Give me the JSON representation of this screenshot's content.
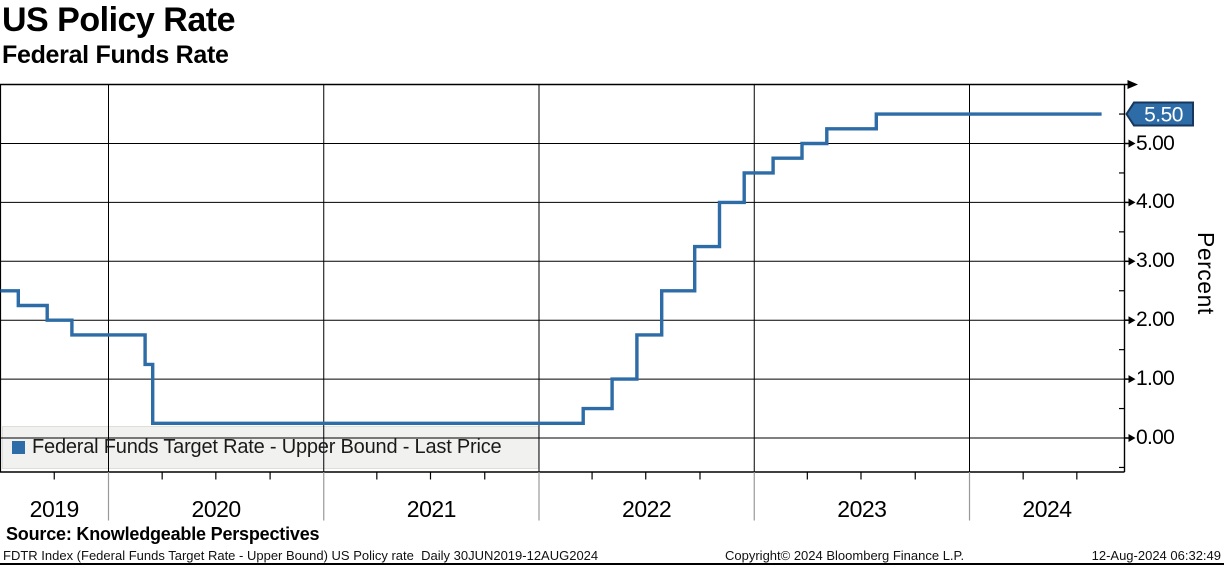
{
  "header": {
    "title": "US Policy Rate",
    "subtitle": "Federal Funds Rate"
  },
  "chart_data": {
    "type": "line",
    "line_style": "step-after",
    "title": "US Policy Rate",
    "subtitle": "Federal Funds Rate",
    "series": [
      {
        "name": "Federal Funds Target Rate - Upper Bound - Last Price",
        "color": "#2D6CA6",
        "points": [
          [
            "2019-06-30",
            2.5
          ],
          [
            "2019-08-01",
            2.25
          ],
          [
            "2019-09-19",
            2.0
          ],
          [
            "2019-10-31",
            1.75
          ],
          [
            "2020-03-03",
            1.25
          ],
          [
            "2020-03-16",
            0.25
          ],
          [
            "2022-03-17",
            0.5
          ],
          [
            "2022-05-05",
            1.0
          ],
          [
            "2022-06-16",
            1.75
          ],
          [
            "2022-07-28",
            2.5
          ],
          [
            "2022-09-22",
            3.25
          ],
          [
            "2022-11-03",
            4.0
          ],
          [
            "2022-12-15",
            4.5
          ],
          [
            "2023-02-02",
            4.75
          ],
          [
            "2023-03-23",
            5.0
          ],
          [
            "2023-05-04",
            5.25
          ],
          [
            "2023-07-27",
            5.5
          ],
          [
            "2024-08-12",
            5.5
          ]
        ]
      }
    ],
    "last_price": "5.50",
    "x_axis": {
      "start": "2019-06-30",
      "end": "2024-08-12",
      "year_labels": [
        "2019",
        "2020",
        "2021",
        "2022",
        "2023",
        "2024"
      ],
      "minor_tick_months": [
        4,
        7,
        10
      ]
    },
    "y_axis": {
      "label": "Percent",
      "tick_values": [
        0,
        1,
        2,
        3,
        4,
        5
      ],
      "tick_labels": [
        "0.00",
        "1.00",
        "2.00",
        "3.00",
        "4.00",
        "5.00"
      ],
      "minor_step": 0.5,
      "range_top": 6.0,
      "range_bottom": -0.57
    },
    "grid": true,
    "legend_position": "bottom-left-inside"
  },
  "legend": {
    "label": "Federal Funds Target Rate - Upper Bound - Last Price"
  },
  "source": {
    "text": "Source: Knowledgeable Perspectives"
  },
  "footer": {
    "left": "FDTR Index (Federal Funds Target Rate - Upper Bound) US Policy rate  Daily 30JUN2019-12AUG2024",
    "center": "Copyright© 2024 Bloomberg Finance L.P.",
    "right": "12-Aug-2024 06:32:49"
  },
  "colors": {
    "line": "#2D6CA6",
    "badge_fill": "#2D6CA6",
    "badge_border": "#17375E",
    "badge_text": "#FFFFFF",
    "grid": "#000000",
    "axis": "#000000",
    "year_separator": "#999999",
    "legend_bg": "#F1F1EF",
    "legend_edge": "#DEDEDB"
  }
}
